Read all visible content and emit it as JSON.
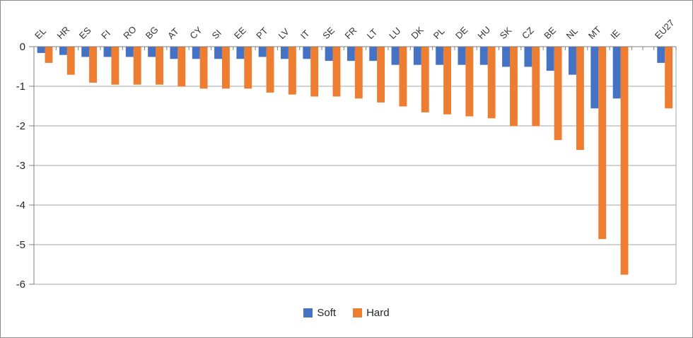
{
  "window": {
    "background": "#FFFFFF",
    "border_color": "#8C8C8C"
  },
  "chart_data": {
    "type": "bar",
    "orientation": "vertical",
    "title": "",
    "xlabel": "",
    "ylabel": "",
    "categories": [
      "EL",
      "HR",
      "ES",
      "FI",
      "RO",
      "BG",
      "AT",
      "CY",
      "SI",
      "EE",
      "PT",
      "LV",
      "IT",
      "SE",
      "FR",
      "LT",
      "LU",
      "DK",
      "PL",
      "DE",
      "HU",
      "SK",
      "CZ",
      "BE",
      "NL",
      "MT",
      "IE",
      "EU27"
    ],
    "series": [
      {
        "name": "Soft",
        "color": "#4472C4",
        "values": [
          -0.15,
          -0.2,
          -0.25,
          -0.25,
          -0.25,
          -0.25,
          -0.3,
          -0.3,
          -0.3,
          -0.3,
          -0.25,
          -0.3,
          -0.3,
          -0.35,
          -0.35,
          -0.35,
          -0.45,
          -0.45,
          -0.45,
          -0.45,
          -0.45,
          -0.5,
          -0.5,
          -0.6,
          -0.7,
          -1.55,
          -1.3,
          -0.4
        ]
      },
      {
        "name": "Hard",
        "color": "#ED7D31",
        "values": [
          -0.4,
          -0.7,
          -0.9,
          -0.95,
          -0.95,
          -0.95,
          -1.0,
          -1.05,
          -1.05,
          -1.05,
          -1.15,
          -1.2,
          -1.25,
          -1.25,
          -1.3,
          -1.4,
          -1.5,
          -1.65,
          -1.7,
          -1.75,
          -1.8,
          -2.0,
          -2.0,
          -2.35,
          -2.6,
          -4.85,
          -5.75,
          -1.55
        ]
      }
    ],
    "y_ticks": [
      "0",
      "-1",
      "-2",
      "-3",
      "-4",
      "-5",
      "-6"
    ],
    "ylim": [
      -6,
      0
    ],
    "grid": true,
    "legend_position": "bottom",
    "layout_hints": {
      "gap_before_last_category": true,
      "category_labels_rotated_degrees": 45,
      "axis_color": "#7F7F7F",
      "gridline_color": "#A6A6A6"
    }
  }
}
